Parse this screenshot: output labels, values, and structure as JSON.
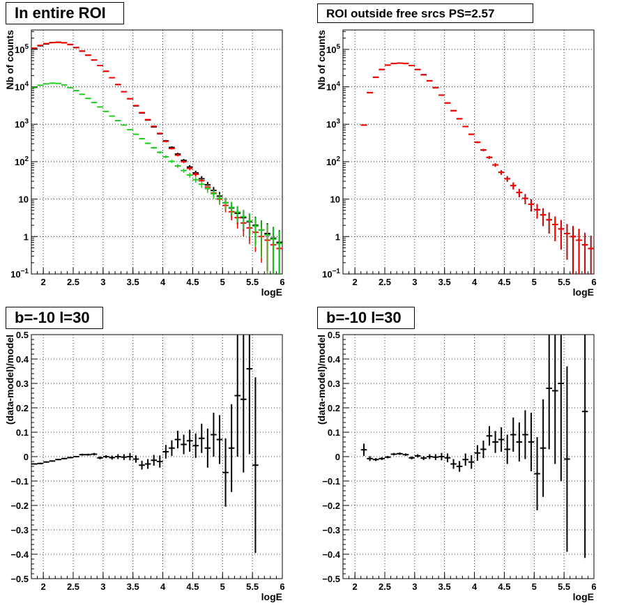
{
  "chart_data": [
    {
      "type": "scatter",
      "title": "In entire ROI",
      "xlabel": "logE",
      "ylabel": "Nb of counts",
      "log_y": true,
      "xlim": [
        1.8,
        6.0
      ],
      "ylim": [
        0.1,
        330000
      ],
      "x_ticks": [
        "2",
        "2.5",
        "3",
        "3.5",
        "4",
        "4.5",
        "5",
        "5.5",
        "6"
      ],
      "y_ticks": [
        "10^-1",
        "1",
        "10",
        "10^2",
        "10^3",
        "10^4",
        "10^5"
      ],
      "grid": true,
      "series": [
        {
          "color": "#000000",
          "x": [
            1.85,
            1.95,
            2.05,
            2.15,
            2.25,
            2.35,
            2.45,
            2.55,
            2.65,
            2.75,
            2.85,
            2.95,
            3.05,
            3.15,
            3.25,
            3.35,
            3.45,
            3.55,
            3.65,
            3.75,
            3.85,
            3.95,
            4.05,
            4.15,
            4.25,
            4.35,
            4.45,
            4.55,
            4.65,
            4.75,
            4.85,
            4.95,
            5.05,
            5.15,
            5.25,
            5.35,
            5.45,
            5.55,
            5.65,
            5.75,
            5.85,
            5.95
          ],
          "y": [
            105000,
            125000,
            140000,
            152000,
            155000,
            150000,
            135000,
            112000,
            90000,
            70000,
            52000,
            37000,
            26000,
            17500,
            11500,
            7400,
            4800,
            3100,
            2000,
            1300,
            850,
            560,
            360,
            240,
            160,
            108,
            72,
            50,
            35,
            24,
            17,
            12,
            8,
            5.8,
            4.2,
            3.2,
            2.5,
            2.0,
            1.5,
            1.2,
            0.9,
            0.7
          ],
          "yerr_rel": [
            0.003,
            0.003,
            0.003,
            0.003,
            0.003,
            0.003,
            0.003,
            0.003,
            0.003,
            0.004,
            0.004,
            0.005,
            0.006,
            0.008,
            0.01,
            0.012,
            0.015,
            0.018,
            0.022,
            0.028,
            0.035,
            0.042,
            0.053,
            0.065,
            0.08,
            0.096,
            0.12,
            0.14,
            0.17,
            0.2,
            0.24,
            0.29,
            0.35,
            0.41,
            0.49,
            0.56,
            0.63,
            0.7,
            0.8,
            0.9,
            1.0,
            1.1
          ]
        },
        {
          "color": "#ff0000",
          "x": [
            1.85,
            1.95,
            2.05,
            2.15,
            2.25,
            2.35,
            2.45,
            2.55,
            2.65,
            2.75,
            2.85,
            2.95,
            3.05,
            3.15,
            3.25,
            3.35,
            3.45,
            3.55,
            3.65,
            3.75,
            3.85,
            3.95,
            4.05,
            4.15,
            4.25,
            4.35,
            4.45,
            4.55,
            4.65,
            4.75,
            4.85,
            4.95,
            5.05,
            5.15,
            5.25,
            5.35,
            5.45,
            5.55,
            5.65,
            5.75,
            5.85,
            5.95
          ],
          "y": [
            108000,
            128000,
            143000,
            152000,
            154000,
            150000,
            135000,
            112000,
            90000,
            70000,
            52000,
            37000,
            26000,
            17500,
            11500,
            7400,
            4800,
            3150,
            2050,
            1330,
            880,
            570,
            350,
            225,
            150,
            100,
            66,
            46,
            31,
            21,
            14.5,
            10,
            6.8,
            4.6,
            3.2,
            2.3,
            1.7,
            1.3,
            1.0,
            0.8,
            0.6,
            0.48
          ],
          "yerr_rel": [
            0.003,
            0.003,
            0.003,
            0.003,
            0.003,
            0.003,
            0.003,
            0.003,
            0.003,
            0.004,
            0.004,
            0.005,
            0.006,
            0.008,
            0.01,
            0.012,
            0.015,
            0.018,
            0.022,
            0.028,
            0.035,
            0.042,
            0.053,
            0.065,
            0.08,
            0.096,
            0.12,
            0.14,
            0.17,
            0.2,
            0.24,
            0.29,
            0.35,
            0.41,
            0.49,
            0.56,
            0.63,
            0.7,
            0.8,
            0.9,
            1.0,
            1.1
          ]
        },
        {
          "color": "#22cc22",
          "x": [
            1.85,
            1.95,
            2.05,
            2.15,
            2.25,
            2.35,
            2.45,
            2.55,
            2.65,
            2.75,
            2.85,
            2.95,
            3.05,
            3.15,
            3.25,
            3.35,
            3.45,
            3.55,
            3.65,
            3.75,
            3.85,
            3.95,
            4.05,
            4.15,
            4.25,
            4.35,
            4.45,
            4.55,
            4.65,
            4.75,
            4.85,
            4.95,
            5.05,
            5.15,
            5.25,
            5.35,
            5.45,
            5.55,
            5.65,
            5.75,
            5.85,
            5.95
          ],
          "y": [
            9500,
            11000,
            12000,
            12500,
            12300,
            11200,
            9500,
            7900,
            6300,
            4900,
            3800,
            2900,
            2200,
            1650,
            1250,
            950,
            720,
            540,
            410,
            310,
            235,
            178,
            135,
            102,
            77,
            58,
            44,
            33,
            25,
            19,
            14,
            10.5,
            8,
            6,
            4.5,
            3.4,
            2.6,
            1.9,
            1.5,
            1.1,
            0.85,
            0.65
          ],
          "yerr_rel": [
            0.01,
            0.01,
            0.01,
            0.01,
            0.01,
            0.01,
            0.011,
            0.012,
            0.013,
            0.015,
            0.017,
            0.019,
            0.022,
            0.025,
            0.029,
            0.033,
            0.038,
            0.044,
            0.05,
            0.058,
            0.066,
            0.075,
            0.086,
            0.1,
            0.115,
            0.13,
            0.15,
            0.17,
            0.2,
            0.23,
            0.27,
            0.31,
            0.35,
            0.41,
            0.47,
            0.54,
            0.62,
            0.72,
            0.82,
            0.95,
            1.05,
            1.15
          ]
        }
      ]
    },
    {
      "type": "scatter",
      "title": "ROI outside free srcs PS=2.57",
      "xlabel": "logE",
      "ylabel": "Nb of counts",
      "log_y": true,
      "xlim": [
        1.8,
        6.0
      ],
      "ylim": [
        0.1,
        330000
      ],
      "x_ticks": [
        "2",
        "2.5",
        "3",
        "3.5",
        "4",
        "4.5",
        "5",
        "5.5",
        "6"
      ],
      "y_ticks": [
        "10^-1",
        "1",
        "10",
        "10^2",
        "10^3",
        "10^4",
        "10^5"
      ],
      "grid": true,
      "series": [
        {
          "color": "#000000",
          "x": [
            2.15,
            2.25,
            2.35,
            2.45,
            2.55,
            2.65,
            2.75,
            2.85,
            2.95,
            3.05,
            3.15,
            3.25,
            3.35,
            3.45,
            3.55,
            3.65,
            3.75,
            3.85,
            3.95,
            4.05,
            4.15,
            4.25,
            4.35,
            4.45,
            4.55,
            4.65,
            4.75,
            4.85,
            4.95,
            5.05,
            5.15,
            5.25,
            5.35,
            5.45,
            5.55,
            5.65,
            5.75,
            5.85,
            5.95
          ],
          "y": [
            950,
            7000,
            18000,
            29000,
            38000,
            42000,
            43000,
            42000,
            37000,
            29000,
            21000,
            14500,
            9500,
            6000,
            3700,
            2300,
            1400,
            870,
            540,
            330,
            205,
            130,
            82,
            52,
            35,
            23,
            15,
            10.5,
            7.3,
            5.2,
            3.8,
            2.8,
            2.1,
            1.6,
            1.2,
            1.0,
            0.8,
            0.6,
            0.48
          ],
          "yerr_rel": [
            0.03,
            0.012,
            0.007,
            0.006,
            0.005,
            0.005,
            0.005,
            0.005,
            0.005,
            0.006,
            0.007,
            0.008,
            0.01,
            0.013,
            0.016,
            0.021,
            0.027,
            0.034,
            0.043,
            0.055,
            0.07,
            0.088,
            0.11,
            0.14,
            0.17,
            0.21,
            0.25,
            0.3,
            0.36,
            0.42,
            0.5,
            0.57,
            0.64,
            0.72,
            0.8,
            0.9,
            1.0,
            1.1,
            1.2
          ]
        },
        {
          "color": "#ff0000",
          "x": [
            2.15,
            2.25,
            2.35,
            2.45,
            2.55,
            2.65,
            2.75,
            2.85,
            2.95,
            3.05,
            3.15,
            3.25,
            3.35,
            3.45,
            3.55,
            3.65,
            3.75,
            3.85,
            3.95,
            4.05,
            4.15,
            4.25,
            4.35,
            4.45,
            4.55,
            4.65,
            4.75,
            4.85,
            4.95,
            5.05,
            5.15,
            5.25,
            5.35,
            5.45,
            5.55,
            5.65,
            5.75,
            5.85,
            5.95
          ],
          "y": [
            950,
            7000,
            18000,
            29000,
            38000,
            42000,
            43000,
            42000,
            37000,
            29000,
            21000,
            14500,
            9500,
            6000,
            3700,
            2300,
            1400,
            870,
            540,
            330,
            205,
            130,
            82,
            52,
            35,
            23,
            15,
            10.5,
            7.3,
            5.2,
            3.8,
            2.8,
            2.1,
            1.6,
            1.2,
            1.0,
            0.8,
            0.6,
            0.48
          ],
          "yerr_rel": [
            0.03,
            0.012,
            0.007,
            0.006,
            0.005,
            0.005,
            0.005,
            0.005,
            0.005,
            0.006,
            0.007,
            0.008,
            0.01,
            0.013,
            0.016,
            0.021,
            0.027,
            0.034,
            0.043,
            0.055,
            0.07,
            0.088,
            0.11,
            0.14,
            0.17,
            0.21,
            0.25,
            0.3,
            0.36,
            0.42,
            0.5,
            0.57,
            0.64,
            0.72,
            0.8,
            0.9,
            1.0,
            1.1,
            1.2
          ]
        }
      ]
    },
    {
      "type": "scatter",
      "title": "b=-10 l=30",
      "xlabel": "logE",
      "ylabel": "(data-model)/model",
      "log_y": false,
      "xlim": [
        1.8,
        6.0
      ],
      "ylim": [
        -0.5,
        0.5
      ],
      "x_ticks": [
        "2",
        "2.5",
        "3",
        "3.5",
        "4",
        "4.5",
        "5",
        "5.5",
        "6"
      ],
      "y_ticks": [
        "-0.5",
        "-0.4",
        "-0.3",
        "-0.2",
        "-0.1",
        "0",
        "0.1",
        "0.2",
        "0.3",
        "0.4",
        "0.5"
      ],
      "grid": true,
      "series": [
        {
          "color": "#000000",
          "x": [
            1.85,
            1.95,
            2.05,
            2.15,
            2.25,
            2.35,
            2.45,
            2.55,
            2.65,
            2.75,
            2.85,
            2.95,
            3.05,
            3.15,
            3.25,
            3.35,
            3.45,
            3.55,
            3.65,
            3.75,
            3.85,
            3.95,
            4.05,
            4.15,
            4.25,
            4.35,
            4.45,
            4.55,
            4.65,
            4.75,
            4.85,
            4.95,
            5.05,
            5.15,
            5.25,
            5.35,
            5.45,
            5.55
          ],
          "y": [
            -0.03,
            -0.028,
            -0.022,
            -0.018,
            -0.012,
            -0.008,
            -0.004,
            0.0,
            0.008,
            0.008,
            0.01,
            -0.005,
            0.0,
            -0.004,
            0.0,
            -0.002,
            0.0,
            -0.01,
            -0.035,
            -0.03,
            -0.015,
            -0.02,
            0.02,
            0.035,
            0.07,
            0.05,
            0.065,
            0.045,
            0.075,
            0.035,
            0.09,
            0.07,
            -0.065,
            0.035,
            0.25,
            0.235,
            0.36,
            -0.035
          ],
          "yerr": [
            0.003,
            0.003,
            0.003,
            0.003,
            0.003,
            0.003,
            0.003,
            0.003,
            0.004,
            0.004,
            0.005,
            0.006,
            0.006,
            0.008,
            0.01,
            0.012,
            0.015,
            0.015,
            0.018,
            0.02,
            0.022,
            0.025,
            0.028,
            0.032,
            0.036,
            0.04,
            0.045,
            0.05,
            0.06,
            0.08,
            0.09,
            0.1,
            0.14,
            0.18,
            0.25,
            0.3,
            0.35,
            0.36
          ]
        }
      ]
    },
    {
      "type": "scatter",
      "title": "b=-10 l=30",
      "xlabel": "logE",
      "ylabel": "(data-model)/model",
      "log_y": false,
      "xlim": [
        1.8,
        6.0
      ],
      "ylim": [
        -0.5,
        0.5
      ],
      "x_ticks": [
        "2",
        "2.5",
        "3",
        "3.5",
        "4",
        "4.5",
        "5",
        "5.5",
        "6"
      ],
      "y_ticks": [
        "-0.5",
        "-0.4",
        "-0.3",
        "-0.2",
        "-0.1",
        "0",
        "0.1",
        "0.2",
        "0.3",
        "0.4",
        "0.5"
      ],
      "grid": true,
      "series": [
        {
          "color": "#000000",
          "x": [
            2.15,
            2.25,
            2.35,
            2.45,
            2.55,
            2.65,
            2.75,
            2.85,
            2.95,
            3.05,
            3.15,
            3.25,
            3.35,
            3.45,
            3.55,
            3.65,
            3.75,
            3.85,
            3.95,
            4.05,
            4.15,
            4.25,
            4.35,
            4.45,
            4.55,
            4.65,
            4.75,
            4.85,
            4.95,
            5.05,
            5.15,
            5.25,
            5.35,
            5.45,
            5.55,
            5.85
          ],
          "y": [
            0.028,
            -0.008,
            -0.012,
            -0.008,
            -0.002,
            0.01,
            0.012,
            0.008,
            -0.005,
            0.003,
            -0.006,
            0.0,
            -0.002,
            0.0,
            -0.005,
            -0.03,
            -0.04,
            -0.012,
            -0.022,
            0.015,
            0.03,
            0.085,
            0.06,
            0.07,
            0.03,
            0.09,
            0.06,
            0.09,
            0.06,
            -0.07,
            0.035,
            0.28,
            0.27,
            0.3,
            -0.01,
            0.185
          ],
          "yerr": [
            0.025,
            0.01,
            0.006,
            0.006,
            0.005,
            0.005,
            0.005,
            0.005,
            0.006,
            0.007,
            0.008,
            0.01,
            0.012,
            0.015,
            0.018,
            0.02,
            0.022,
            0.025,
            0.028,
            0.032,
            0.036,
            0.04,
            0.045,
            0.05,
            0.06,
            0.07,
            0.08,
            0.1,
            0.12,
            0.15,
            0.2,
            0.25,
            0.3,
            0.4,
            0.38,
            0.6
          ]
        }
      ]
    }
  ]
}
